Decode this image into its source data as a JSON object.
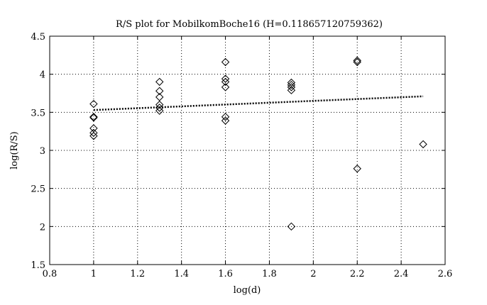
{
  "chart_data": {
    "type": "scatter",
    "title": "R/S plot for MobilkomBoche16 (H=0.118657120759362)",
    "xlabel": "log(d)",
    "ylabel": "log(R/S)",
    "xlim": [
      0.8,
      2.6
    ],
    "ylim": [
      1.5,
      4.5
    ],
    "xticks": [
      0.8,
      1,
      1.2,
      1.4,
      1.6,
      1.8,
      2,
      2.2,
      2.4,
      2.6
    ],
    "xtick_labels": [
      "0.8",
      "1",
      "1.2",
      "1.4",
      "1.6",
      "1.8",
      "2",
      "2.2",
      "2.4",
      "2.6"
    ],
    "yticks": [
      1.5,
      2,
      2.5,
      3,
      3.5,
      4,
      4.5
    ],
    "ytick_labels": [
      "1.5",
      "2",
      "2.5",
      "3",
      "3.5",
      "4",
      "4.5"
    ],
    "grid": true,
    "marker": "diamond",
    "points": {
      "x": [
        1,
        1,
        1,
        1,
        1,
        1,
        1.3,
        1.3,
        1.3,
        1.3,
        1.3,
        1.3,
        1.6,
        1.6,
        1.6,
        1.6,
        1.6,
        1.6,
        1.9,
        1.9,
        1.9,
        1.9,
        1.9,
        2.2,
        2.2,
        2.2,
        2.5
      ],
      "y": [
        3.61,
        3.44,
        3.43,
        3.29,
        3.23,
        3.19,
        3.9,
        3.78,
        3.7,
        3.6,
        3.56,
        3.52,
        4.16,
        3.94,
        3.9,
        3.83,
        3.44,
        3.39,
        3.89,
        3.86,
        3.83,
        3.79,
        2.0,
        4.18,
        4.16,
        2.76,
        3.08
      ]
    },
    "fit_line": {
      "x": [
        1,
        2.5
      ],
      "y": [
        3.53,
        3.71
      ]
    }
  }
}
